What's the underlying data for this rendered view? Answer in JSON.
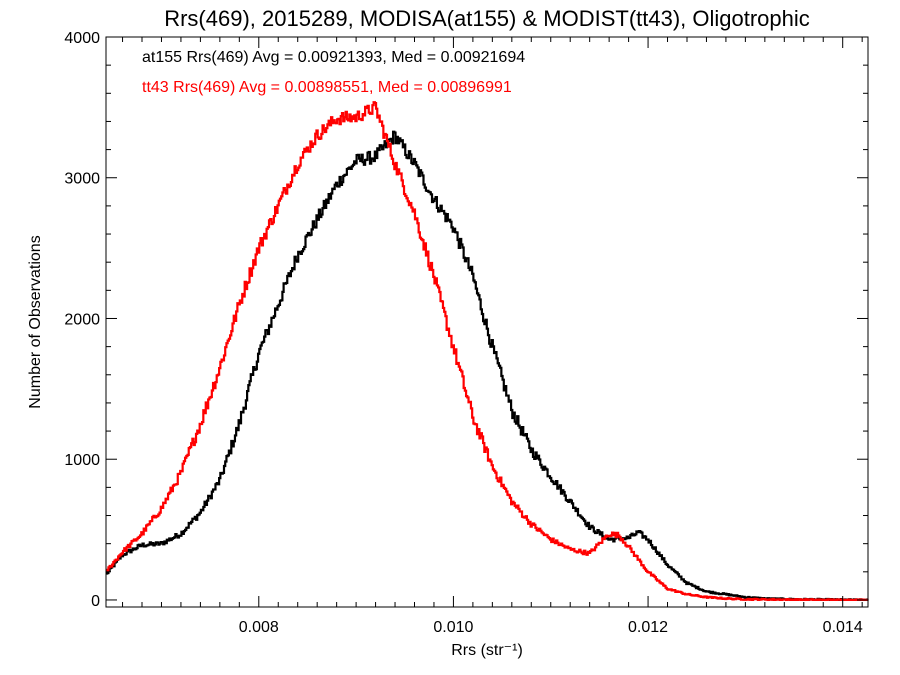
{
  "chart_data": {
    "type": "line",
    "title": "Rrs(469), 2015289, MODISA(at155) & MODIST(tt43), Oligotrophic",
    "xlabel": "Rrs (str⁻¹)",
    "ylabel": "Number of Observations",
    "xlim": [
      0.00643,
      0.01426
    ],
    "ylim": [
      -50,
      4000
    ],
    "xticks": [
      0.008,
      0.01,
      0.012,
      0.014
    ],
    "xtick_labels": [
      "0.008",
      "0.010",
      "0.012",
      "0.014"
    ],
    "yticks": [
      0,
      1000,
      2000,
      3000,
      4000
    ],
    "ytick_labels": [
      "0",
      "1000",
      "2000",
      "3000",
      "4000"
    ],
    "grid": false,
    "style": "step",
    "annotations": [
      {
        "text": "at155 Rrs(469) Avg = 0.00921393, Med = 0.00921694",
        "color": "#000000"
      },
      {
        "text": "tt43 Rrs(469) Avg = 0.00898551, Med = 0.00896991",
        "color": "#ff0000"
      }
    ],
    "series": [
      {
        "color": "#000000",
        "x": [
          0.00643,
          0.0066,
          0.0068,
          0.007,
          0.0072,
          0.0074,
          0.0076,
          0.0078,
          0.008,
          0.0082,
          0.0084,
          0.0086,
          0.0088,
          0.009,
          0.0092,
          0.0094,
          0.0096,
          0.0098,
          0.01,
          0.0102,
          0.0104,
          0.0106,
          0.0108,
          0.011,
          0.0112,
          0.0114,
          0.0116,
          0.0118,
          0.0119,
          0.012,
          0.0122,
          0.0124,
          0.0126,
          0.0128,
          0.013,
          0.0132,
          0.0135,
          0.014,
          0.01426
        ],
        "y": [
          180,
          320,
          390,
          400,
          470,
          620,
          850,
          1250,
          1750,
          2100,
          2450,
          2700,
          2950,
          3120,
          3150,
          3300,
          3100,
          2850,
          2650,
          2300,
          1800,
          1350,
          1070,
          880,
          700,
          520,
          430,
          440,
          480,
          430,
          250,
          120,
          60,
          40,
          20,
          10,
          5,
          2,
          0
        ]
      },
      {
        "color": "#ff0000",
        "x": [
          0.00643,
          0.0066,
          0.0068,
          0.007,
          0.0072,
          0.0074,
          0.0076,
          0.0078,
          0.008,
          0.0082,
          0.0084,
          0.0086,
          0.0088,
          0.009,
          0.0092,
          0.0094,
          0.0096,
          0.0098,
          0.01,
          0.0102,
          0.0104,
          0.0106,
          0.0108,
          0.011,
          0.0112,
          0.0114,
          0.0116,
          0.0117,
          0.0118,
          0.012,
          0.0122,
          0.0124,
          0.0126,
          0.0128,
          0.013,
          0.0135,
          0.014,
          0.01426
        ],
        "y": [
          200,
          340,
          470,
          650,
          900,
          1250,
          1650,
          2100,
          2500,
          2800,
          3100,
          3300,
          3420,
          3430,
          3500,
          3100,
          2750,
          2300,
          1800,
          1300,
          950,
          700,
          540,
          430,
          360,
          330,
          470,
          460,
          380,
          200,
          80,
          40,
          20,
          10,
          5,
          2,
          0,
          0
        ]
      }
    ]
  }
}
